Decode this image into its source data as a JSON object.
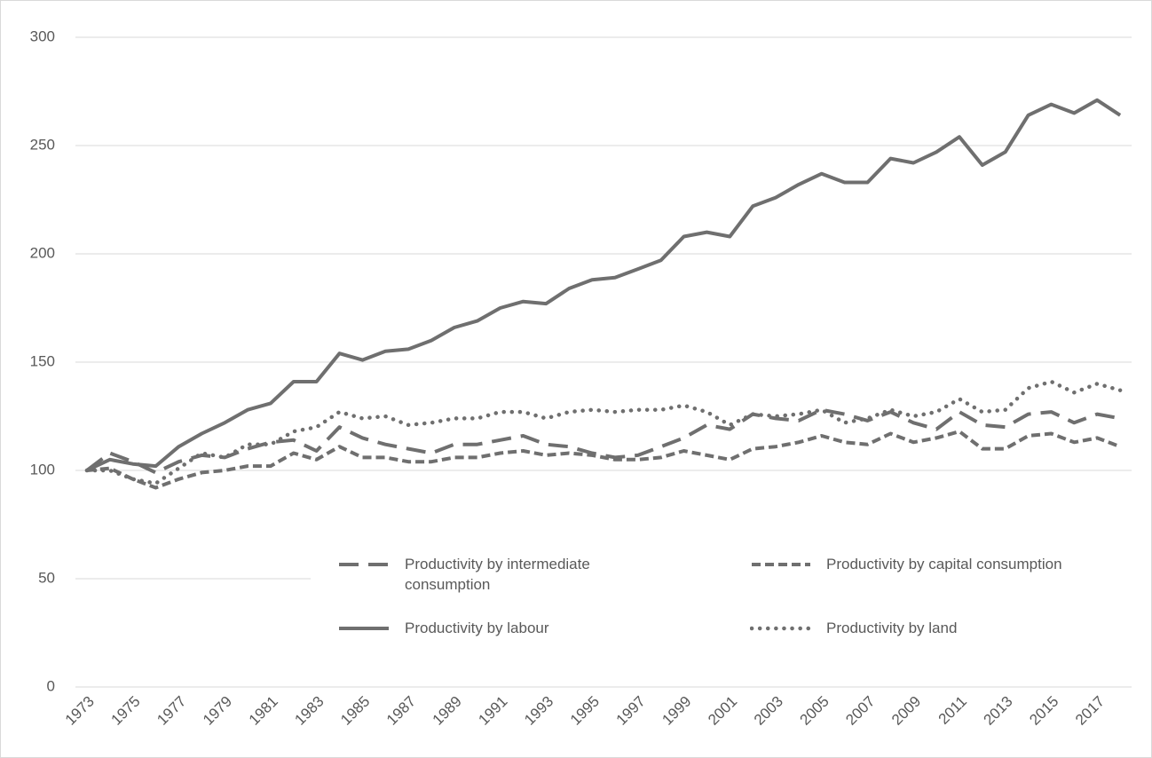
{
  "chart_data": {
    "type": "line",
    "categories": [
      "1973",
      null,
      "1975",
      null,
      "1977",
      null,
      "1979",
      null,
      "1981",
      null,
      "1983",
      null,
      "1985",
      null,
      "1987",
      null,
      "1989",
      null,
      "1991",
      null,
      "1993",
      null,
      "1995",
      null,
      "1997",
      null,
      "1999",
      null,
      "2001",
      null,
      "2003",
      null,
      "2005",
      null,
      "2007",
      null,
      "2009",
      null,
      "2011",
      null,
      "2013",
      null,
      "2015",
      null,
      "2017",
      null
    ],
    "series": [
      {
        "name": "Productivity by intermediate consumption",
        "color": "#6f6f6f",
        "line_style": "long-dash",
        "values": [
          100,
          108,
          104,
          99,
          104,
          107,
          106,
          110,
          113,
          114,
          109,
          120,
          115,
          112,
          110,
          108,
          112,
          112,
          114,
          116,
          112,
          111,
          108,
          106,
          107,
          111,
          115,
          121,
          119,
          126,
          124,
          123,
          128,
          126,
          123,
          127,
          122,
          119,
          127,
          121,
          120,
          126,
          127,
          122,
          126,
          124
        ]
      },
      {
        "name": "Productivity by capital consumption",
        "color": "#6f6f6f",
        "line_style": "dash",
        "values": [
          100,
          101,
          96,
          92,
          96,
          99,
          100,
          102,
          102,
          108,
          105,
          111,
          106,
          106,
          104,
          104,
          106,
          106,
          108,
          109,
          107,
          108,
          107,
          105,
          105,
          106,
          109,
          107,
          105,
          110,
          111,
          113,
          116,
          113,
          112,
          117,
          113,
          115,
          118,
          110,
          110,
          116,
          117,
          113,
          115,
          111
        ]
      },
      {
        "name": "Productivity by labour",
        "color": "#6f6f6f",
        "line_style": "solid",
        "values": [
          100,
          105,
          103,
          102,
          111,
          117,
          122,
          128,
          131,
          141,
          141,
          154,
          151,
          155,
          156,
          160,
          166,
          169,
          175,
          178,
          177,
          184,
          188,
          189,
          193,
          197,
          208,
          210,
          208,
          222,
          226,
          232,
          237,
          233,
          233,
          244,
          242,
          247,
          254,
          241,
          247,
          264,
          269,
          265,
          271,
          264
        ]
      },
      {
        "name": "Productivity by land",
        "color": "#6f6f6f",
        "line_style": "dot",
        "values": [
          100,
          100,
          96,
          94,
          101,
          108,
          106,
          112,
          112,
          118,
          120,
          127,
          124,
          125,
          121,
          122,
          124,
          124,
          127,
          127,
          124,
          127,
          128,
          127,
          128,
          128,
          130,
          127,
          121,
          126,
          125,
          126,
          128,
          122,
          124,
          128,
          125,
          127,
          133,
          127,
          128,
          138,
          141,
          136,
          140,
          137
        ]
      }
    ],
    "ylim": [
      0,
      300
    ],
    "yticks": [
      0,
      50,
      100,
      150,
      200,
      250,
      300
    ],
    "grid": true
  }
}
